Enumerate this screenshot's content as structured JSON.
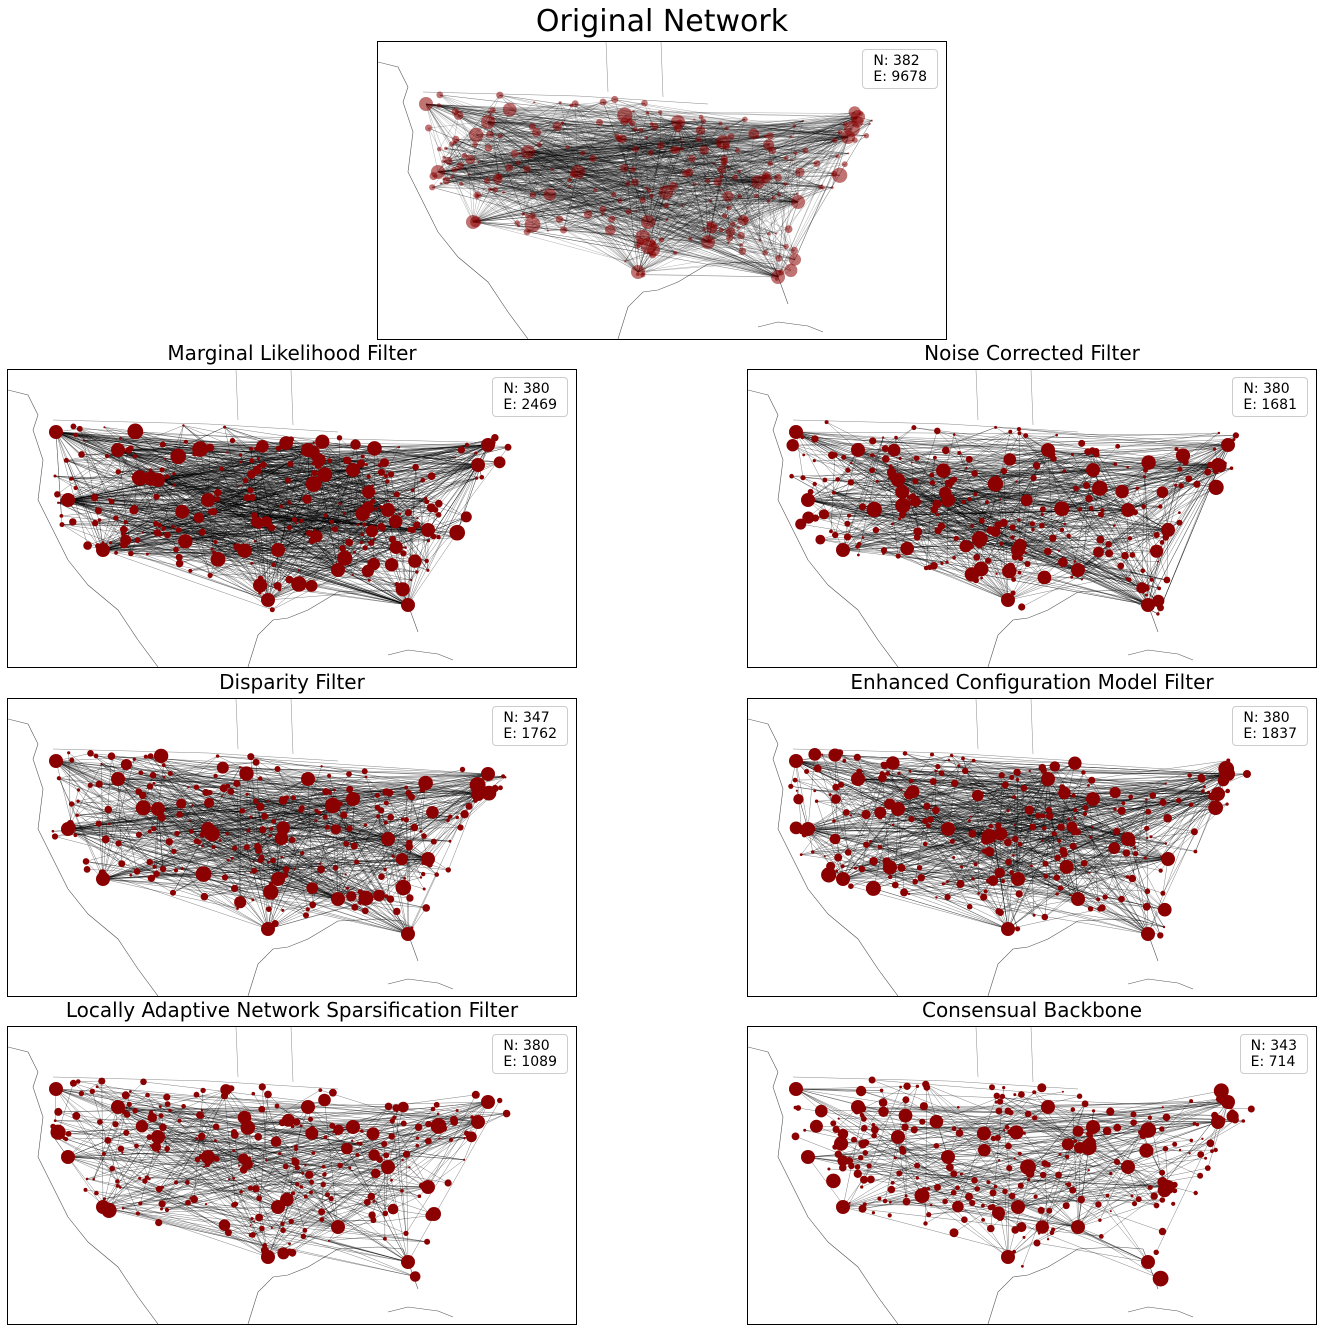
{
  "figure": {
    "main_title": "Original Network",
    "colors": {
      "node": "#8b0000",
      "edge": "#000000",
      "coast": "#555555"
    },
    "panels": [
      {
        "id": "original",
        "title": "Original Network",
        "nodes_label": "N: 382",
        "edges_label": "E: 9678",
        "nodes": 382,
        "edges": 9678
      },
      {
        "id": "mlf",
        "title": "Marginal Likelihood Filter",
        "nodes_label": "N: 380",
        "edges_label": "E: 2469",
        "nodes": 380,
        "edges": 2469
      },
      {
        "id": "ncf",
        "title": "Noise Corrected Filter",
        "nodes_label": "N: 380",
        "edges_label": "E: 1681",
        "nodes": 380,
        "edges": 1681
      },
      {
        "id": "df",
        "title": "Disparity Filter",
        "nodes_label": "N: 347",
        "edges_label": "E: 1762",
        "nodes": 347,
        "edges": 1762
      },
      {
        "id": "ecm",
        "title": "Enhanced Configuration Model Filter",
        "nodes_label": "N: 380",
        "edges_label": "E: 1837",
        "nodes": 380,
        "edges": 1837
      },
      {
        "id": "lans",
        "title": "Locally Adaptive Network Sparsification Filter",
        "nodes_label": "N: 380",
        "edges_label": "E: 1089",
        "nodes": 380,
        "edges": 1089
      },
      {
        "id": "cb",
        "title": "Consensual Backbone",
        "nodes_label": "N: 343",
        "edges_label": "E: 714",
        "nodes": 343,
        "edges": 714
      }
    ]
  }
}
